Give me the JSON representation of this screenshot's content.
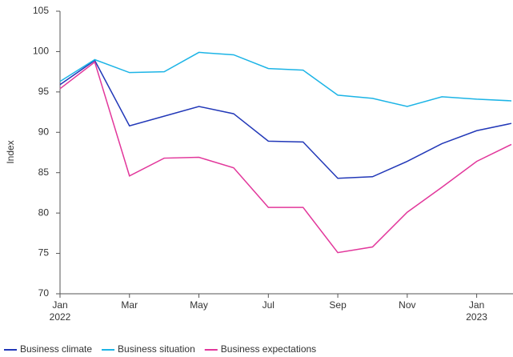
{
  "chart_data": {
    "type": "line",
    "y_label": "Index",
    "categories": [
      "Jan 2022",
      null,
      "Mar",
      null,
      "May",
      null,
      "Jul",
      null,
      "Sep",
      null,
      "Nov",
      null,
      "Jan 2023",
      null
    ],
    "series": [
      {
        "name": "Business climate",
        "color": "#2238b8",
        "values": [
          95.9,
          98.9,
          90.8,
          92.0,
          93.2,
          92.3,
          88.9,
          88.8,
          84.3,
          84.5,
          86.4,
          88.6,
          90.2,
          91.1
        ]
      },
      {
        "name": "Business situation",
        "color": "#1cb4e6",
        "values": [
          96.3,
          99.0,
          97.4,
          97.5,
          99.9,
          99.6,
          97.9,
          97.7,
          94.6,
          94.2,
          93.2,
          94.4,
          94.1,
          93.9
        ]
      },
      {
        "name": "Business expectations",
        "color": "#e2379b",
        "values": [
          95.4,
          98.7,
          84.6,
          86.8,
          86.9,
          85.6,
          80.7,
          80.7,
          75.1,
          75.8,
          80.1,
          83.2,
          86.4,
          88.5
        ]
      }
    ],
    "ylim": [
      70,
      105
    ],
    "yticks": [
      70,
      75,
      80,
      85,
      90,
      95,
      100,
      105
    ],
    "grid": false
  }
}
